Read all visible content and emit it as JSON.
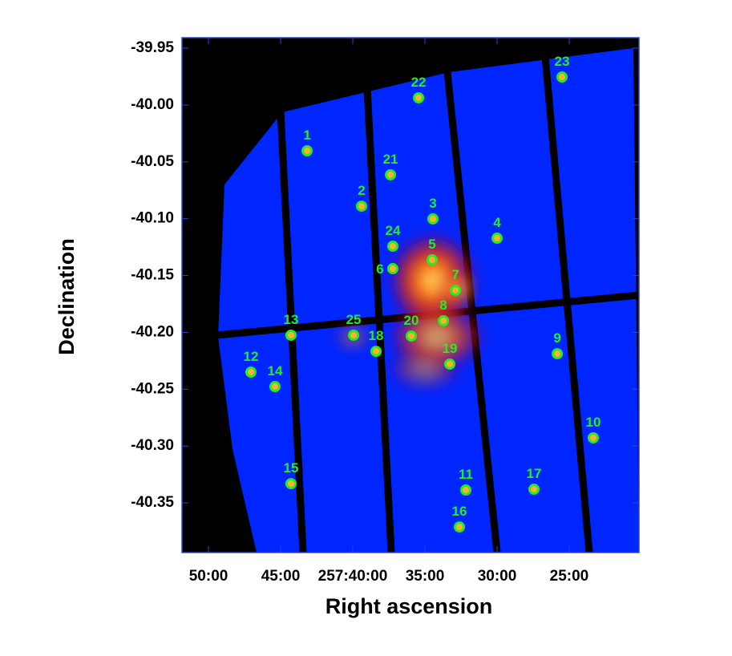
{
  "chart_data": {
    "type": "scatter",
    "xlabel": "Right ascension",
    "ylabel": "Declination",
    "xlim": [
      257.8639,
      257.3361
    ],
    "ylim": [
      -40.3937,
      -39.9408
    ],
    "xticks": [
      {
        "value": 257.8333,
        "label": "50:00"
      },
      {
        "value": 257.75,
        "label": "45:00"
      },
      {
        "value": 257.6667,
        "label": "257:40:00"
      },
      {
        "value": 257.5833,
        "label": "35:00"
      },
      {
        "value": 257.5,
        "label": "30:00"
      },
      {
        "value": 257.4167,
        "label": "25:00"
      }
    ],
    "yticks": [
      {
        "value": -39.95,
        "label": "-39.95"
      },
      {
        "value": -40.0,
        "label": "-40.00"
      },
      {
        "value": -40.05,
        "label": "-40.05"
      },
      {
        "value": -40.1,
        "label": "-40.10"
      },
      {
        "value": -40.15,
        "label": "-40.15"
      },
      {
        "value": -40.2,
        "label": "-40.20"
      },
      {
        "value": -40.25,
        "label": "-40.25"
      },
      {
        "value": -40.3,
        "label": "-40.30"
      },
      {
        "value": -40.35,
        "label": "-40.35"
      }
    ],
    "color": "#22ee22",
    "labels": [
      "1",
      "2",
      "3",
      "4",
      "5",
      "6",
      "7",
      "8",
      "9",
      "10",
      "11",
      "12",
      "13",
      "14",
      "15",
      "16",
      "17",
      "18",
      "19",
      "20",
      "21",
      "22",
      "23",
      "24",
      "25"
    ],
    "x": [
      257.7194,
      257.6565,
      257.5741,
      257.5,
      257.575,
      257.6204,
      257.5481,
      257.562,
      257.4305,
      257.3889,
      257.5361,
      257.7843,
      257.738,
      257.7565,
      257.738,
      257.5435,
      257.4574,
      257.6398,
      257.5546,
      257.5991,
      257.6231,
      257.5907,
      257.425,
      257.6204,
      257.6657
    ],
    "y": [
      -40.0403,
      -40.089,
      -40.1002,
      -40.1172,
      -40.1362,
      -40.144,
      -40.163,
      -40.1898,
      -40.2188,
      -40.2928,
      -40.3387,
      -40.235,
      -40.2025,
      -40.2477,
      -40.3331,
      -40.3712,
      -40.338,
      -40.2167,
      -40.2279,
      -40.2032,
      -40.0614,
      -39.9937,
      -39.9754,
      -40.1242,
      -40.2025
    ]
  }
}
